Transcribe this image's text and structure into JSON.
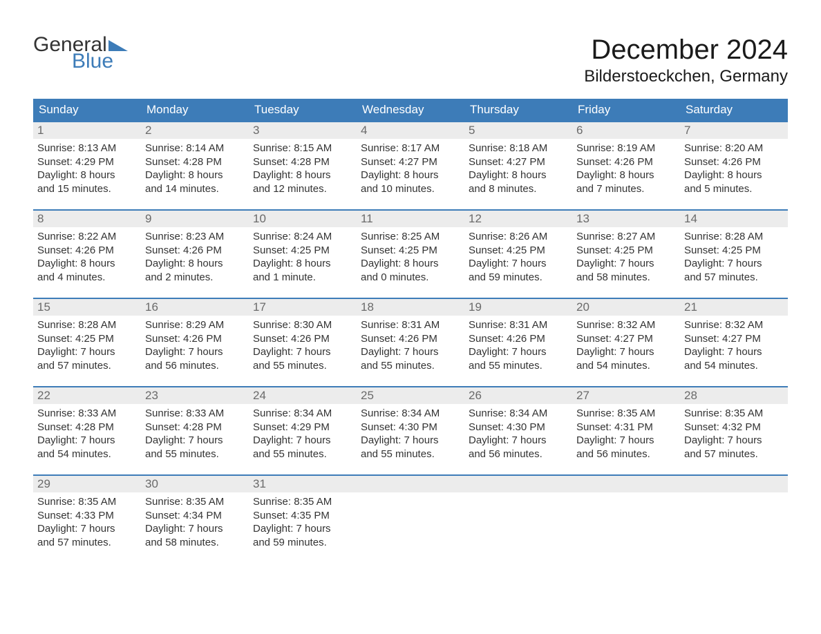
{
  "logo": {
    "line1": "General",
    "line2": "Blue",
    "triangle_color": "#3d7cb8"
  },
  "title": "December 2024",
  "location": "Bilderstoeckchen, Germany",
  "colors": {
    "header_bg": "#3d7cb8",
    "header_text": "#ffffff",
    "daynum_bg": "#ececec",
    "daynum_text": "#6a6a6a",
    "body_text": "#333333",
    "week_border": "#3d7cb8",
    "page_bg": "#ffffff"
  },
  "weekday_headers": [
    "Sunday",
    "Monday",
    "Tuesday",
    "Wednesday",
    "Thursday",
    "Friday",
    "Saturday"
  ],
  "weeks": [
    [
      {
        "n": "1",
        "sunrise": "Sunrise: 8:13 AM",
        "sunset": "Sunset: 4:29 PM",
        "dl1": "Daylight: 8 hours",
        "dl2": "and 15 minutes."
      },
      {
        "n": "2",
        "sunrise": "Sunrise: 8:14 AM",
        "sunset": "Sunset: 4:28 PM",
        "dl1": "Daylight: 8 hours",
        "dl2": "and 14 minutes."
      },
      {
        "n": "3",
        "sunrise": "Sunrise: 8:15 AM",
        "sunset": "Sunset: 4:28 PM",
        "dl1": "Daylight: 8 hours",
        "dl2": "and 12 minutes."
      },
      {
        "n": "4",
        "sunrise": "Sunrise: 8:17 AM",
        "sunset": "Sunset: 4:27 PM",
        "dl1": "Daylight: 8 hours",
        "dl2": "and 10 minutes."
      },
      {
        "n": "5",
        "sunrise": "Sunrise: 8:18 AM",
        "sunset": "Sunset: 4:27 PM",
        "dl1": "Daylight: 8 hours",
        "dl2": "and 8 minutes."
      },
      {
        "n": "6",
        "sunrise": "Sunrise: 8:19 AM",
        "sunset": "Sunset: 4:26 PM",
        "dl1": "Daylight: 8 hours",
        "dl2": "and 7 minutes."
      },
      {
        "n": "7",
        "sunrise": "Sunrise: 8:20 AM",
        "sunset": "Sunset: 4:26 PM",
        "dl1": "Daylight: 8 hours",
        "dl2": "and 5 minutes."
      }
    ],
    [
      {
        "n": "8",
        "sunrise": "Sunrise: 8:22 AM",
        "sunset": "Sunset: 4:26 PM",
        "dl1": "Daylight: 8 hours",
        "dl2": "and 4 minutes."
      },
      {
        "n": "9",
        "sunrise": "Sunrise: 8:23 AM",
        "sunset": "Sunset: 4:26 PM",
        "dl1": "Daylight: 8 hours",
        "dl2": "and 2 minutes."
      },
      {
        "n": "10",
        "sunrise": "Sunrise: 8:24 AM",
        "sunset": "Sunset: 4:25 PM",
        "dl1": "Daylight: 8 hours",
        "dl2": "and 1 minute."
      },
      {
        "n": "11",
        "sunrise": "Sunrise: 8:25 AM",
        "sunset": "Sunset: 4:25 PM",
        "dl1": "Daylight: 8 hours",
        "dl2": "and 0 minutes."
      },
      {
        "n": "12",
        "sunrise": "Sunrise: 8:26 AM",
        "sunset": "Sunset: 4:25 PM",
        "dl1": "Daylight: 7 hours",
        "dl2": "and 59 minutes."
      },
      {
        "n": "13",
        "sunrise": "Sunrise: 8:27 AM",
        "sunset": "Sunset: 4:25 PM",
        "dl1": "Daylight: 7 hours",
        "dl2": "and 58 minutes."
      },
      {
        "n": "14",
        "sunrise": "Sunrise: 8:28 AM",
        "sunset": "Sunset: 4:25 PM",
        "dl1": "Daylight: 7 hours",
        "dl2": "and 57 minutes."
      }
    ],
    [
      {
        "n": "15",
        "sunrise": "Sunrise: 8:28 AM",
        "sunset": "Sunset: 4:25 PM",
        "dl1": "Daylight: 7 hours",
        "dl2": "and 57 minutes."
      },
      {
        "n": "16",
        "sunrise": "Sunrise: 8:29 AM",
        "sunset": "Sunset: 4:26 PM",
        "dl1": "Daylight: 7 hours",
        "dl2": "and 56 minutes."
      },
      {
        "n": "17",
        "sunrise": "Sunrise: 8:30 AM",
        "sunset": "Sunset: 4:26 PM",
        "dl1": "Daylight: 7 hours",
        "dl2": "and 55 minutes."
      },
      {
        "n": "18",
        "sunrise": "Sunrise: 8:31 AM",
        "sunset": "Sunset: 4:26 PM",
        "dl1": "Daylight: 7 hours",
        "dl2": "and 55 minutes."
      },
      {
        "n": "19",
        "sunrise": "Sunrise: 8:31 AM",
        "sunset": "Sunset: 4:26 PM",
        "dl1": "Daylight: 7 hours",
        "dl2": "and 55 minutes."
      },
      {
        "n": "20",
        "sunrise": "Sunrise: 8:32 AM",
        "sunset": "Sunset: 4:27 PM",
        "dl1": "Daylight: 7 hours",
        "dl2": "and 54 minutes."
      },
      {
        "n": "21",
        "sunrise": "Sunrise: 8:32 AM",
        "sunset": "Sunset: 4:27 PM",
        "dl1": "Daylight: 7 hours",
        "dl2": "and 54 minutes."
      }
    ],
    [
      {
        "n": "22",
        "sunrise": "Sunrise: 8:33 AM",
        "sunset": "Sunset: 4:28 PM",
        "dl1": "Daylight: 7 hours",
        "dl2": "and 54 minutes."
      },
      {
        "n": "23",
        "sunrise": "Sunrise: 8:33 AM",
        "sunset": "Sunset: 4:28 PM",
        "dl1": "Daylight: 7 hours",
        "dl2": "and 55 minutes."
      },
      {
        "n": "24",
        "sunrise": "Sunrise: 8:34 AM",
        "sunset": "Sunset: 4:29 PM",
        "dl1": "Daylight: 7 hours",
        "dl2": "and 55 minutes."
      },
      {
        "n": "25",
        "sunrise": "Sunrise: 8:34 AM",
        "sunset": "Sunset: 4:30 PM",
        "dl1": "Daylight: 7 hours",
        "dl2": "and 55 minutes."
      },
      {
        "n": "26",
        "sunrise": "Sunrise: 8:34 AM",
        "sunset": "Sunset: 4:30 PM",
        "dl1": "Daylight: 7 hours",
        "dl2": "and 56 minutes."
      },
      {
        "n": "27",
        "sunrise": "Sunrise: 8:35 AM",
        "sunset": "Sunset: 4:31 PM",
        "dl1": "Daylight: 7 hours",
        "dl2": "and 56 minutes."
      },
      {
        "n": "28",
        "sunrise": "Sunrise: 8:35 AM",
        "sunset": "Sunset: 4:32 PM",
        "dl1": "Daylight: 7 hours",
        "dl2": "and 57 minutes."
      }
    ],
    [
      {
        "n": "29",
        "sunrise": "Sunrise: 8:35 AM",
        "sunset": "Sunset: 4:33 PM",
        "dl1": "Daylight: 7 hours",
        "dl2": "and 57 minutes."
      },
      {
        "n": "30",
        "sunrise": "Sunrise: 8:35 AM",
        "sunset": "Sunset: 4:34 PM",
        "dl1": "Daylight: 7 hours",
        "dl2": "and 58 minutes."
      },
      {
        "n": "31",
        "sunrise": "Sunrise: 8:35 AM",
        "sunset": "Sunset: 4:35 PM",
        "dl1": "Daylight: 7 hours",
        "dl2": "and 59 minutes."
      },
      {
        "empty": true
      },
      {
        "empty": true
      },
      {
        "empty": true
      },
      {
        "empty": true
      }
    ]
  ]
}
